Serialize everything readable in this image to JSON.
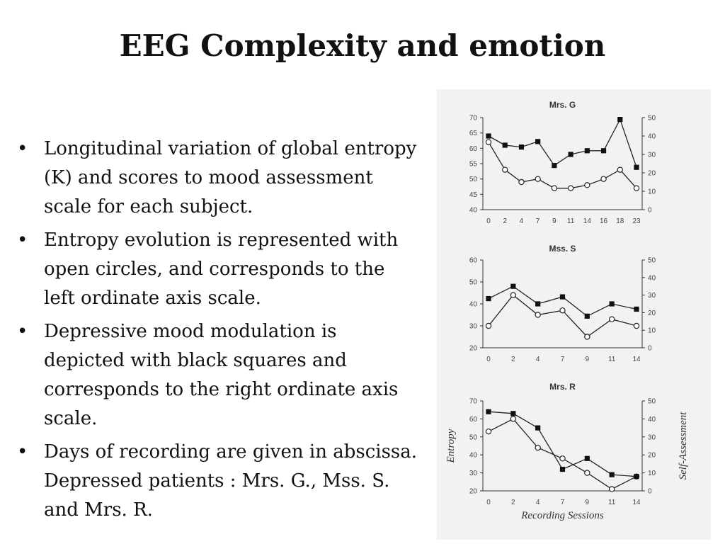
{
  "slide": {
    "title": "EEG Complexity and emotion",
    "bullets": [
      "Longitudinal variation of global entropy (K) and scores to mood assessment scale for each subject.",
      "Entropy evolution is represented with open circles, and corresponds to the left ordinate axis scale.",
      "Depressive mood modulation is depicted with black squares and corresponds to the right ordinate axis scale.",
      "Days of recording are given in abscissa. Depressed patients : Mrs. G., Mss. S. and Mrs. R."
    ]
  },
  "chart_data": [
    {
      "type": "line",
      "title": "Mrs. G",
      "categories": [
        "0",
        "2",
        "4",
        "7",
        "9",
        "11",
        "14",
        "16",
        "18",
        "23"
      ],
      "ylim": [
        40,
        70
      ],
      "y2lim": [
        0,
        50
      ],
      "yticks": [
        40,
        45,
        50,
        55,
        60,
        65,
        70
      ],
      "y2ticks": [
        0,
        10,
        20,
        30,
        40,
        50
      ],
      "series": [
        {
          "marker": "circle",
          "axis": "left",
          "values": [
            62,
            53,
            49,
            50,
            47,
            47,
            48,
            50,
            53,
            47
          ]
        },
        {
          "marker": "square",
          "axis": "right",
          "values": [
            40,
            35,
            34,
            37,
            24,
            30,
            32,
            32,
            49,
            23
          ]
        }
      ]
    },
    {
      "type": "line",
      "title": "Mss. S",
      "categories": [
        "0",
        "2",
        "4",
        "7",
        "9",
        "11",
        "14"
      ],
      "ylim": [
        20,
        60
      ],
      "y2lim": [
        0,
        50
      ],
      "yticks": [
        20,
        30,
        40,
        50,
        60
      ],
      "y2ticks": [
        0,
        10,
        20,
        30,
        40,
        50
      ],
      "series": [
        {
          "marker": "circle",
          "axis": "left",
          "values": [
            30,
            44,
            35,
            37,
            25,
            33,
            30
          ]
        },
        {
          "marker": "square",
          "axis": "right",
          "values": [
            28,
            35,
            25,
            29,
            18,
            25,
            22
          ]
        }
      ]
    },
    {
      "type": "line",
      "title": "Mrs. R",
      "categories": [
        "0",
        "2",
        "4",
        "7",
        "9",
        "11",
        "14"
      ],
      "ylim": [
        20,
        70
      ],
      "y2lim": [
        0,
        50
      ],
      "yticks": [
        20,
        30,
        40,
        50,
        60,
        70
      ],
      "y2ticks": [
        0,
        10,
        20,
        30,
        40,
        50
      ],
      "ylabel": "Entropy",
      "y2label": "Self-Assessment",
      "xlabel": "Recording Sessions",
      "series": [
        {
          "marker": "circle",
          "axis": "left",
          "values": [
            53,
            60,
            44,
            38,
            30,
            21,
            28
          ]
        },
        {
          "marker": "square",
          "axis": "right",
          "values": [
            44,
            43,
            35,
            12,
            18,
            9,
            8
          ]
        }
      ]
    }
  ]
}
